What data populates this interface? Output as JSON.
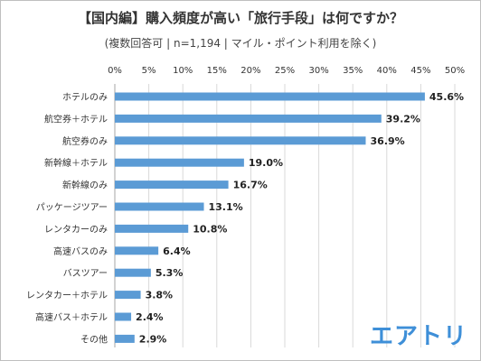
{
  "header": {
    "title": "【国内編】購入頻度が高い「旅行手段」は何ですか？",
    "subtitle": "(複数回答可 | n=1,194 | マイル・ポイント利用を除く)"
  },
  "logo_text": "エアトリ",
  "colors": {
    "bar": "#5b9bd5",
    "grid": "#d9d9d9",
    "text": "#333333"
  },
  "chart_data": {
    "type": "bar",
    "orientation": "horizontal",
    "title": "【国内編】購入頻度が高い「旅行手段」は何ですか？",
    "subtitle": "(複数回答可 | n=1,194 | マイル・ポイント利用を除く)",
    "categories": [
      "ホテルのみ",
      "航空券＋ホテル",
      "航空券のみ",
      "新幹線＋ホテル",
      "新幹線のみ",
      "パッケージツアー",
      "レンタカーのみ",
      "高速バスのみ",
      "バスツアー",
      "レンタカー＋ホテル",
      "高速バス＋ホテル",
      "その他"
    ],
    "values": [
      45.6,
      39.2,
      36.9,
      19.0,
      16.7,
      13.1,
      10.8,
      6.4,
      5.3,
      3.8,
      2.4,
      2.9
    ],
    "value_labels": [
      "45.6%",
      "39.2%",
      "36.9%",
      "19.0%",
      "16.7%",
      "13.1%",
      "10.8%",
      "6.4%",
      "5.3%",
      "3.8%",
      "2.4%",
      "2.9%"
    ],
    "xlim": [
      0,
      50
    ],
    "xticks": [
      0,
      5,
      10,
      15,
      20,
      25,
      30,
      35,
      40,
      45,
      50
    ],
    "xtick_labels": [
      "0%",
      "5%",
      "10%",
      "15%",
      "20%",
      "25%",
      "30%",
      "35%",
      "40%",
      "45%",
      "50%"
    ],
    "xlabel": "",
    "ylabel": "",
    "grid": true,
    "axis_position": "top"
  }
}
